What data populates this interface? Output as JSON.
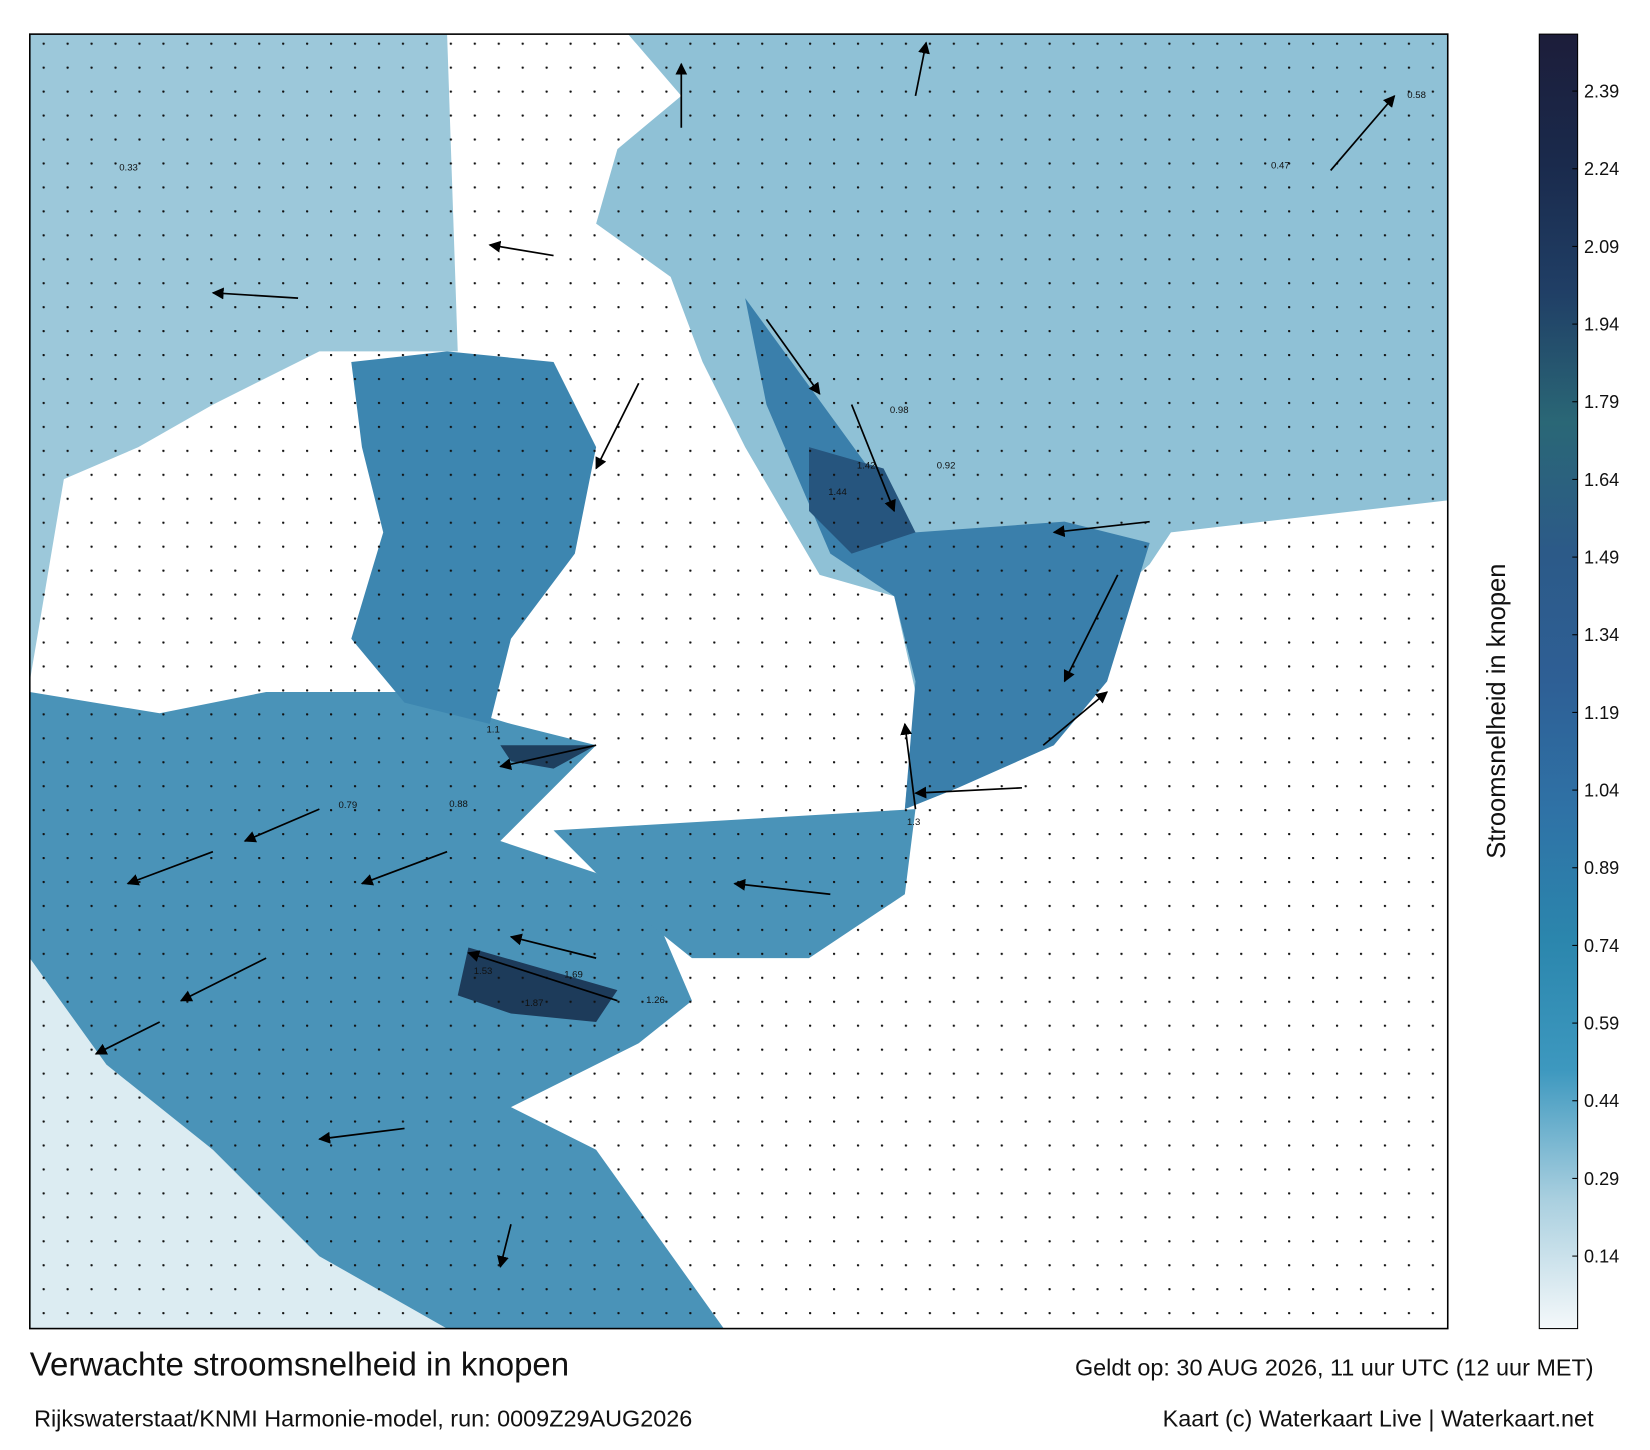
{
  "title": "Verwachte stroomsnelheid in knopen",
  "subtitle": "Rijkswaterstaat/KNMI Harmonie-model, run: 0009Z29AUG2026",
  "valid_time": "Geldt op: 30 AUG 2026, 11 uur UTC (12 uur MET)",
  "credit": "Kaart (c) Waterkaart Live | Waterkaart.net",
  "colorbar": {
    "label": "Stroomsnelheid in knopen",
    "range": [
      0,
      2.5
    ],
    "ticks": [
      0.14,
      0.29,
      0.44,
      0.59,
      0.74,
      0.89,
      1.04,
      1.19,
      1.34,
      1.49,
      1.64,
      1.79,
      1.94,
      2.09,
      2.24,
      2.39
    ],
    "colors": [
      "#f4f8fa",
      "#a9cfdf",
      "#3d98bf",
      "#2b86ad",
      "#2f72a6",
      "#2e5f95",
      "#2c5a88",
      "#2a6776",
      "#203f66",
      "#1a2a4c",
      "#1c1d3a"
    ]
  },
  "speed_labels": [
    1.87,
    1.69,
    1.53,
    1.44,
    1.42,
    1.3,
    1.26,
    1.1,
    0.98,
    0.92,
    0.88,
    0.79,
    0.58,
    0.47,
    0.33
  ]
}
